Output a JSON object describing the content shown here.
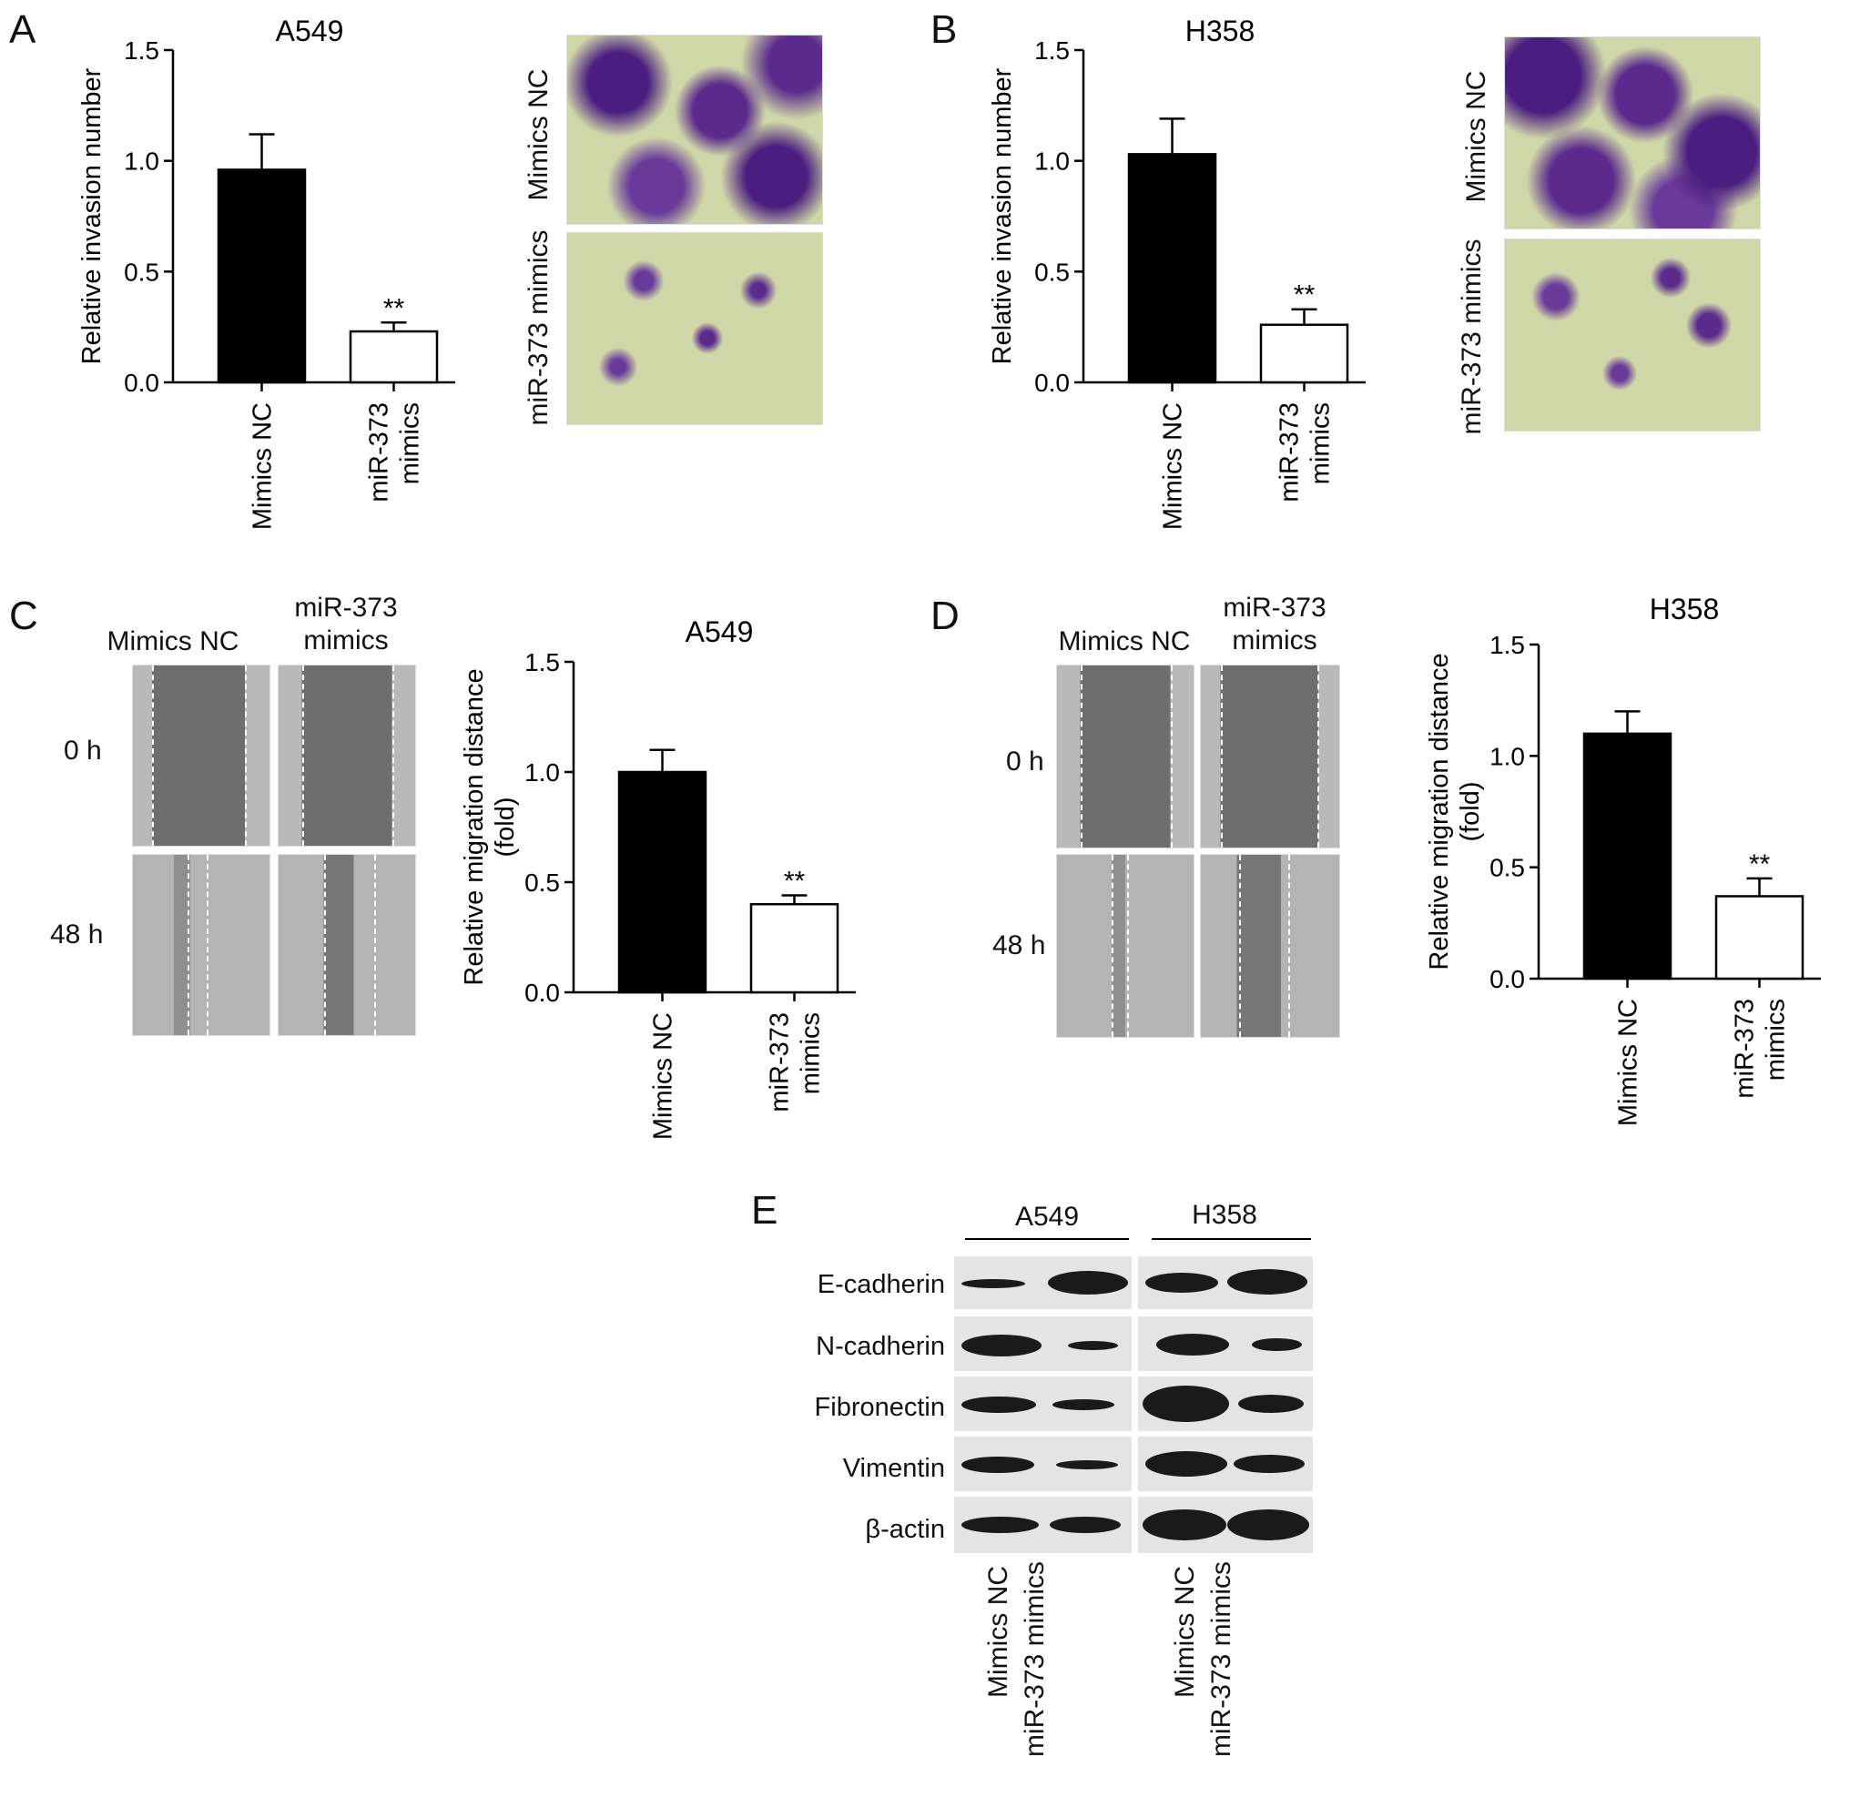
{
  "panels": {
    "A": "A",
    "B": "B",
    "C": "C",
    "D": "D",
    "E": "E"
  },
  "chart_data": [
    {
      "id": "A",
      "type": "bar",
      "title": "A549",
      "ylabel": "Relative invasion number",
      "categories": [
        "Mimics NC",
        "miR-373\nmimics"
      ],
      "values": [
        0.96,
        0.23
      ],
      "errors": [
        0.16,
        0.04
      ],
      "annotations": [
        "",
        "**"
      ],
      "ylim": [
        0,
        1.5
      ],
      "yticks": [
        "0.0",
        "0.5",
        "1.0",
        "1.5"
      ]
    },
    {
      "id": "B",
      "type": "bar",
      "title": "H358",
      "ylabel": "Relative invasion number",
      "categories": [
        "Mimics NC",
        "miR-373\nmimics"
      ],
      "values": [
        1.03,
        0.26
      ],
      "errors": [
        0.16,
        0.07
      ],
      "annotations": [
        "",
        "**"
      ],
      "ylim": [
        0,
        1.5
      ],
      "yticks": [
        "0.0",
        "0.5",
        "1.0",
        "1.5"
      ]
    },
    {
      "id": "C",
      "type": "bar",
      "title": "A549",
      "ylabel": "Relative migration distance\n(fold)",
      "categories": [
        "Mimics NC",
        "miR-373\nmimics"
      ],
      "values": [
        1.0,
        0.4
      ],
      "errors": [
        0.1,
        0.04
      ],
      "annotations": [
        "",
        "**"
      ],
      "ylim": [
        0,
        1.5
      ],
      "yticks": [
        "0.0",
        "0.5",
        "1.0",
        "1.5"
      ]
    },
    {
      "id": "D",
      "type": "bar",
      "title": "H358",
      "ylabel": "Relative migration distance\n(fold)",
      "categories": [
        "Mimics NC",
        "miR-373\nmimics"
      ],
      "values": [
        1.1,
        0.37
      ],
      "errors": [
        0.1,
        0.08
      ],
      "annotations": [
        "",
        "**"
      ],
      "ylim": [
        0,
        1.5
      ],
      "yticks": [
        "0.0",
        "0.5",
        "1.0",
        "1.5"
      ]
    }
  ],
  "invasion_images": {
    "top_label": "Mimics NC",
    "bottom_label": "miR-373 mimics"
  },
  "scratch_images": {
    "col1": "Mimics NC",
    "col2": "miR-373\nmimics",
    "row1": "0 h",
    "row2": "48 h"
  },
  "blot": {
    "groups": [
      "A549",
      "H358"
    ],
    "proteins": [
      "E-cadherin",
      "N-cadherin",
      "Fibronectin",
      "Vimentin",
      "β-actin"
    ],
    "lanes": [
      "Mimics NC",
      "miR-373 mimics",
      "Mimics NC",
      "miR-373 mimics"
    ]
  },
  "colors": {
    "bar_nc": "#000000",
    "bar_mimics": "#ffffff",
    "stain": "#5b2a8c"
  }
}
